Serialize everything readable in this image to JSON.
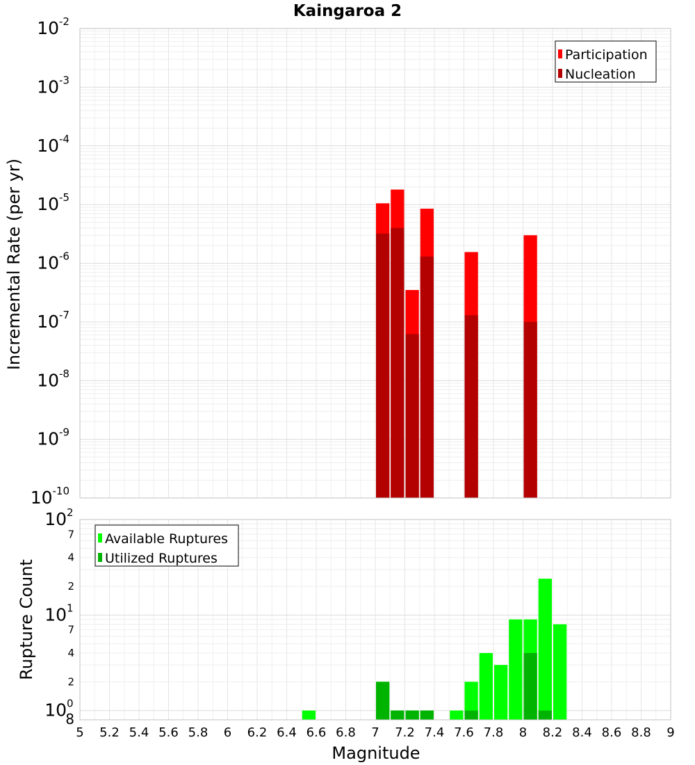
{
  "chart_data": [
    {
      "type": "bar",
      "title": "Kaingaroa 2",
      "xlabel": "",
      "ylabel": "Incremental Rate (per yr)",
      "yscale": "log",
      "ylim": [
        1e-10,
        0.01
      ],
      "xlim": [
        5,
        9
      ],
      "y_tick_exponents": [
        "-10",
        "-9",
        "-8",
        "-7",
        "-6",
        "-5",
        "-4",
        "-3",
        "-2"
      ],
      "y_tick_base": "10",
      "grid": true,
      "legend_position": "top-right",
      "colors": {
        "Participation": "#ff0000",
        "Nucleation": "#b30000"
      },
      "bin_width": 0.1,
      "x": [
        7.05,
        7.15,
        7.25,
        7.35,
        7.65,
        8.05
      ],
      "series": [
        {
          "name": "Participation",
          "values": [
            1.05e-05,
            1.8e-05,
            3.5e-07,
            8.5e-06,
            1.55e-06,
            3e-06
          ]
        },
        {
          "name": "Nucleation",
          "values": [
            3.2e-06,
            4e-06,
            6.2e-08,
            1.3e-06,
            1.3e-07,
            1e-07
          ]
        }
      ]
    },
    {
      "type": "bar",
      "title": "",
      "xlabel": "Magnitude",
      "ylabel": "Rupture Count",
      "yscale": "log",
      "ylim": [
        0.8,
        100
      ],
      "xlim": [
        5,
        9
      ],
      "x_ticks": [
        "5",
        "5.2",
        "5.4",
        "5.6",
        "5.8",
        "6",
        "6.2",
        "6.4",
        "6.6",
        "6.8",
        "7",
        "7.2",
        "7.4",
        "7.6",
        "7.8",
        "8",
        "8.2",
        "8.4",
        "8.6",
        "8.8",
        "9"
      ],
      "y_major_ticks": [
        {
          "value": 1,
          "base": "10",
          "exp": "0"
        },
        {
          "value": 10,
          "base": "10",
          "exp": "1"
        },
        {
          "value": 100,
          "base": "10",
          "exp": "2"
        }
      ],
      "y_minor_ticks": [
        {
          "value": 0.8,
          "label": "8"
        },
        {
          "value": 2,
          "label": "2"
        },
        {
          "value": 4,
          "label": "4"
        },
        {
          "value": 7,
          "label": "7"
        },
        {
          "value": 20,
          "label": "2"
        },
        {
          "value": 40,
          "label": "4"
        },
        {
          "value": 70,
          "label": "7"
        }
      ],
      "grid": true,
      "legend_position": "top-left",
      "colors": {
        "Available Ruptures": "#00ff00",
        "Utilized Ruptures": "#00b300"
      },
      "bin_width": 0.1,
      "x": [
        6.55,
        7.05,
        7.15,
        7.25,
        7.35,
        7.55,
        7.65,
        7.75,
        7.85,
        7.95,
        8.05,
        8.15,
        8.25
      ],
      "series": [
        {
          "name": "Available Ruptures",
          "values": [
            1,
            2,
            1,
            1,
            1,
            1,
            2,
            4,
            3,
            9,
            9,
            24,
            8
          ]
        },
        {
          "name": "Utilized Ruptures",
          "values": [
            0,
            2,
            1,
            1,
            1,
            0,
            1,
            0,
            0,
            0,
            4,
            1,
            0
          ]
        }
      ]
    }
  ]
}
